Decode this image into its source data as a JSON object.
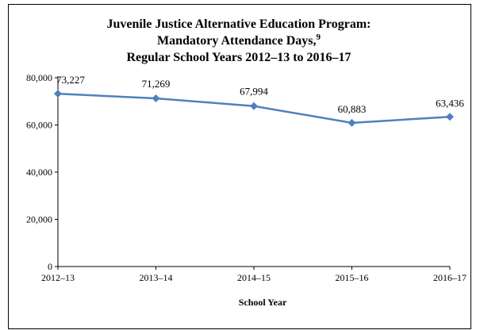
{
  "chart_data": {
    "type": "line",
    "title_lines": [
      "Juvenile Justice Alternative Education Program:",
      "Mandatory Attendance Days,",
      "Regular School Years 2012–13 to 2016–17"
    ],
    "title_superscript": "9",
    "categories": [
      "2012–13",
      "2013–14",
      "2014–15",
      "2015–16",
      "2016–17"
    ],
    "values": [
      73227,
      71269,
      67994,
      60883,
      63436
    ],
    "value_labels": [
      "73,227",
      "71,269",
      "67,994",
      "60,883",
      "63,436"
    ],
    "xlabel": "School Year",
    "ylabel": "",
    "ylim": [
      0,
      80000
    ],
    "yticks": [
      0,
      20000,
      40000,
      60000,
      80000
    ],
    "ytick_labels": [
      "0",
      "20,000",
      "40,000",
      "60,000",
      "80,000"
    ],
    "grid": false,
    "series_color": "#4f81bd",
    "marker": "diamond"
  }
}
